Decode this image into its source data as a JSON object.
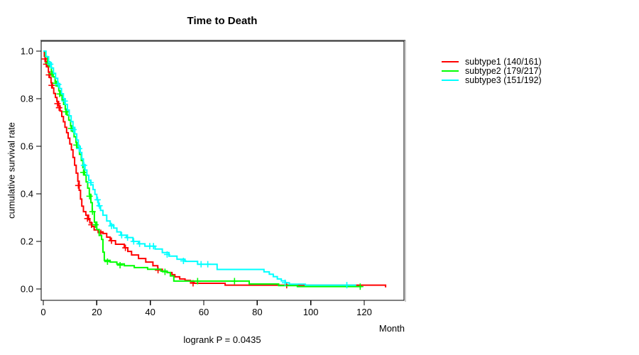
{
  "title": "Time to Death",
  "footnote": "logrank P = 0.0435",
  "axes": {
    "x": {
      "label": "Month",
      "ticks": [
        0,
        20,
        40,
        60,
        80,
        100,
        120
      ]
    },
    "y": {
      "label": "cumulative survival rate",
      "ticks": [
        "0.0",
        "0.2",
        "0.4",
        "0.6",
        "0.8",
        "1.0"
      ]
    }
  },
  "legend": [
    {
      "label": "subtype1 (140/161)",
      "color": "#ff0000"
    },
    {
      "label": "subtype2 (179/217)",
      "color": "#00ff00"
    },
    {
      "label": "subtype3 (151/192)",
      "color": "#00ffff"
    }
  ],
  "chart_data": {
    "type": "line",
    "subtype": "kaplan-meier-step",
    "title": "Time to Death",
    "xlabel": "Month",
    "ylabel": "cumulative survival rate",
    "xlim": [
      0,
      135
    ],
    "ylim": [
      0,
      1.04
    ],
    "grid": false,
    "legend_position": "right-outside",
    "annotation": "logrank P = 0.0435",
    "series": [
      {
        "name": "subtype1 (140/161)",
        "color": "#ff0000",
        "steps": [
          [
            0,
            1.0
          ],
          [
            0.4,
            0.978
          ],
          [
            0.9,
            0.956
          ],
          [
            1.4,
            0.934
          ],
          [
            1.9,
            0.912
          ],
          [
            2.4,
            0.889
          ],
          [
            2.9,
            0.867
          ],
          [
            3.4,
            0.845
          ],
          [
            3.9,
            0.822
          ],
          [
            4.5,
            0.805
          ],
          [
            5.1,
            0.788
          ],
          [
            5.7,
            0.77
          ],
          [
            6.3,
            0.748
          ],
          [
            6.9,
            0.725
          ],
          [
            7.5,
            0.703
          ],
          [
            8.1,
            0.68
          ],
          [
            8.7,
            0.657
          ],
          [
            9.3,
            0.634
          ],
          [
            9.9,
            0.61
          ],
          [
            10.5,
            0.585
          ],
          [
            11.1,
            0.553
          ],
          [
            11.7,
            0.52
          ],
          [
            12.3,
            0.487
          ],
          [
            12.9,
            0.453
          ],
          [
            13.4,
            0.415
          ],
          [
            13.9,
            0.378
          ],
          [
            14.4,
            0.348
          ],
          [
            15.0,
            0.325
          ],
          [
            15.9,
            0.31
          ],
          [
            16.9,
            0.292
          ],
          [
            17.4,
            0.278
          ],
          [
            18.2,
            0.263
          ],
          [
            19.0,
            0.248
          ],
          [
            20.5,
            0.24
          ],
          [
            22.3,
            0.233
          ],
          [
            23.7,
            0.218
          ],
          [
            25.0,
            0.203
          ],
          [
            27.0,
            0.188
          ],
          [
            30.3,
            0.173
          ],
          [
            31.6,
            0.158
          ],
          [
            33.0,
            0.143
          ],
          [
            35.6,
            0.128
          ],
          [
            38.3,
            0.113
          ],
          [
            41.0,
            0.098
          ],
          [
            42.8,
            0.083
          ],
          [
            44.5,
            0.075
          ],
          [
            46.3,
            0.069
          ],
          [
            48.1,
            0.06
          ],
          [
            49.2,
            0.051
          ],
          [
            51.0,
            0.042
          ],
          [
            53.0,
            0.036
          ],
          [
            55.0,
            0.03
          ],
          [
            56.4,
            0.024
          ],
          [
            68.0,
            0.016
          ],
          [
            126.8,
            0.016
          ],
          [
            128.0,
            0.007
          ]
        ],
        "censors": [
          [
            0.6,
            0.967
          ],
          [
            1.1,
            0.945
          ],
          [
            2.1,
            0.9
          ],
          [
            3.1,
            0.856
          ],
          [
            5.3,
            0.779
          ],
          [
            5.9,
            0.762
          ],
          [
            13.1,
            0.435
          ],
          [
            16.5,
            0.296
          ],
          [
            18.0,
            0.27
          ],
          [
            21.5,
            0.236
          ],
          [
            25.5,
            0.203
          ],
          [
            30.7,
            0.173
          ],
          [
            42.9,
            0.079
          ],
          [
            56.0,
            0.024
          ],
          [
            91.0,
            0.016
          ]
        ]
      },
      {
        "name": "subtype2 (179/217)",
        "color": "#00ff00",
        "steps": [
          [
            0,
            1.0
          ],
          [
            0.8,
            0.977
          ],
          [
            1.6,
            0.955
          ],
          [
            2.3,
            0.934
          ],
          [
            3.0,
            0.912
          ],
          [
            3.7,
            0.892
          ],
          [
            4.4,
            0.872
          ],
          [
            5.1,
            0.853
          ],
          [
            5.8,
            0.833
          ],
          [
            6.4,
            0.814
          ],
          [
            7.0,
            0.795
          ],
          [
            7.6,
            0.776
          ],
          [
            8.2,
            0.756
          ],
          [
            8.9,
            0.731
          ],
          [
            9.5,
            0.71
          ],
          [
            10.2,
            0.686
          ],
          [
            10.9,
            0.662
          ],
          [
            11.5,
            0.64
          ],
          [
            12.2,
            0.616
          ],
          [
            12.9,
            0.592
          ],
          [
            13.5,
            0.566
          ],
          [
            14.2,
            0.54
          ],
          [
            14.8,
            0.51
          ],
          [
            15.4,
            0.479
          ],
          [
            16.0,
            0.45
          ],
          [
            16.6,
            0.424
          ],
          [
            17.2,
            0.398
          ],
          [
            17.8,
            0.363
          ],
          [
            18.3,
            0.325
          ],
          [
            19.1,
            0.281
          ],
          [
            20.0,
            0.25
          ],
          [
            20.9,
            0.225
          ],
          [
            21.8,
            0.208
          ],
          [
            22.3,
            0.155
          ],
          [
            22.8,
            0.12
          ],
          [
            25.0,
            0.113
          ],
          [
            27.5,
            0.105
          ],
          [
            30.3,
            0.098
          ],
          [
            34.0,
            0.09
          ],
          [
            39.0,
            0.083
          ],
          [
            44.0,
            0.075
          ],
          [
            46.3,
            0.069
          ],
          [
            47.5,
            0.055
          ],
          [
            48.8,
            0.033
          ],
          [
            77.0,
            0.021
          ],
          [
            88.0,
            0.014
          ],
          [
            95.0,
            0.01
          ],
          [
            119.0,
            0.01
          ]
        ],
        "censors": [
          [
            1.8,
            0.95
          ],
          [
            3.2,
            0.905
          ],
          [
            4.6,
            0.865
          ],
          [
            6.1,
            0.82
          ],
          [
            8.4,
            0.745
          ],
          [
            10.4,
            0.675
          ],
          [
            12.4,
            0.605
          ],
          [
            15.0,
            0.49
          ],
          [
            17.3,
            0.39
          ],
          [
            18.4,
            0.325
          ],
          [
            19.5,
            0.27
          ],
          [
            24.0,
            0.115
          ],
          [
            28.7,
            0.1
          ],
          [
            45.5,
            0.072
          ],
          [
            57.7,
            0.033
          ],
          [
            71.5,
            0.033
          ],
          [
            118.5,
            0.01
          ]
        ]
      },
      {
        "name": "subtype3 (151/192)",
        "color": "#00ffff",
        "steps": [
          [
            0,
            1.0
          ],
          [
            1.0,
            0.976
          ],
          [
            2.0,
            0.952
          ],
          [
            3.0,
            0.929
          ],
          [
            3.8,
            0.907
          ],
          [
            4.6,
            0.886
          ],
          [
            5.4,
            0.864
          ],
          [
            6.1,
            0.843
          ],
          [
            6.8,
            0.821
          ],
          [
            7.5,
            0.8
          ],
          [
            8.2,
            0.776
          ],
          [
            9.0,
            0.752
          ],
          [
            9.7,
            0.728
          ],
          [
            10.4,
            0.704
          ],
          [
            11.1,
            0.679
          ],
          [
            11.8,
            0.652
          ],
          [
            12.5,
            0.626
          ],
          [
            13.1,
            0.6
          ],
          [
            13.8,
            0.574
          ],
          [
            14.4,
            0.547
          ],
          [
            15.0,
            0.523
          ],
          [
            15.6,
            0.5
          ],
          [
            16.3,
            0.478
          ],
          [
            17.0,
            0.457
          ],
          [
            17.8,
            0.438
          ],
          [
            18.6,
            0.418
          ],
          [
            19.3,
            0.398
          ],
          [
            20.0,
            0.375
          ],
          [
            20.6,
            0.348
          ],
          [
            21.4,
            0.33
          ],
          [
            22.3,
            0.31
          ],
          [
            23.7,
            0.286
          ],
          [
            25.0,
            0.27
          ],
          [
            26.3,
            0.256
          ],
          [
            27.5,
            0.24
          ],
          [
            29.0,
            0.226
          ],
          [
            31.1,
            0.216
          ],
          [
            33.5,
            0.2
          ],
          [
            35.6,
            0.19
          ],
          [
            38.0,
            0.18
          ],
          [
            41.8,
            0.168
          ],
          [
            44.5,
            0.153
          ],
          [
            47.0,
            0.138
          ],
          [
            50.0,
            0.125
          ],
          [
            53.0,
            0.116
          ],
          [
            57.7,
            0.104
          ],
          [
            65.0,
            0.082
          ],
          [
            82.5,
            0.072
          ],
          [
            84.5,
            0.062
          ],
          [
            86.0,
            0.052
          ],
          [
            87.5,
            0.042
          ],
          [
            89.0,
            0.034
          ],
          [
            90.5,
            0.026
          ],
          [
            92.0,
            0.02
          ],
          [
            98.0,
            0.016
          ],
          [
            117.0,
            0.016
          ]
        ],
        "censors": [
          [
            2.6,
            0.945
          ],
          [
            5.6,
            0.86
          ],
          [
            8.0,
            0.79
          ],
          [
            11.3,
            0.67
          ],
          [
            13.4,
            0.59
          ],
          [
            15.2,
            0.52
          ],
          [
            17.7,
            0.447
          ],
          [
            20.3,
            0.375
          ],
          [
            21.0,
            0.35
          ],
          [
            25.5,
            0.265
          ],
          [
            29.3,
            0.226
          ],
          [
            31.5,
            0.216
          ],
          [
            33.8,
            0.2
          ],
          [
            36.0,
            0.19
          ],
          [
            39.8,
            0.18
          ],
          [
            41.2,
            0.18
          ],
          [
            46.3,
            0.145
          ],
          [
            52.4,
            0.118
          ],
          [
            59.0,
            0.104
          ],
          [
            61.5,
            0.104
          ],
          [
            90.4,
            0.026
          ],
          [
            113.5,
            0.016
          ]
        ]
      }
    ]
  }
}
